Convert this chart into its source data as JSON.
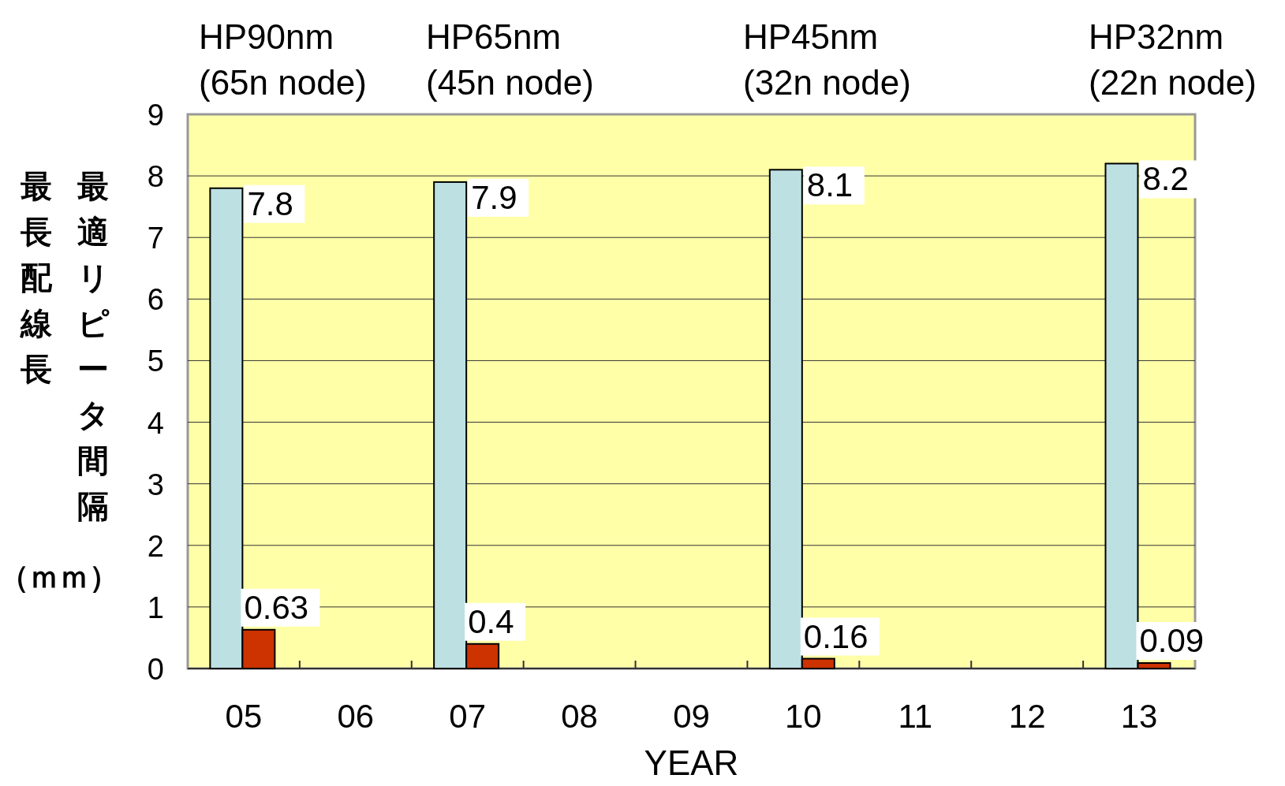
{
  "chart_data": {
    "type": "bar",
    "title": null,
    "categories": [
      "05",
      "06",
      "07",
      "08",
      "09",
      "10",
      "11",
      "12",
      "13"
    ],
    "series": [
      {
        "color": "#bde0e3",
        "values": [
          7.8,
          null,
          7.9,
          null,
          null,
          8.1,
          null,
          null,
          8.2
        ]
      },
      {
        "color": "#cc3300",
        "values": [
          0.63,
          null,
          0.4,
          null,
          null,
          0.16,
          null,
          null,
          0.09
        ]
      }
    ],
    "xlabel": "YEAR",
    "ylabel": "最長配線長",
    "ylim": [
      0,
      9
    ],
    "yticks": [
      0,
      1,
      2,
      3,
      4,
      5,
      6,
      7,
      8,
      9
    ],
    "grid": "y",
    "data_labels": true,
    "annotations": [
      "HP90nm\n(65n node)",
      "HP65nm\n(45n node)",
      "HP45nm\n(32n node)",
      "HP32nm\n(22n node)",
      "最適リピータ間隔",
      "（ｍｍ）"
    ]
  }
}
